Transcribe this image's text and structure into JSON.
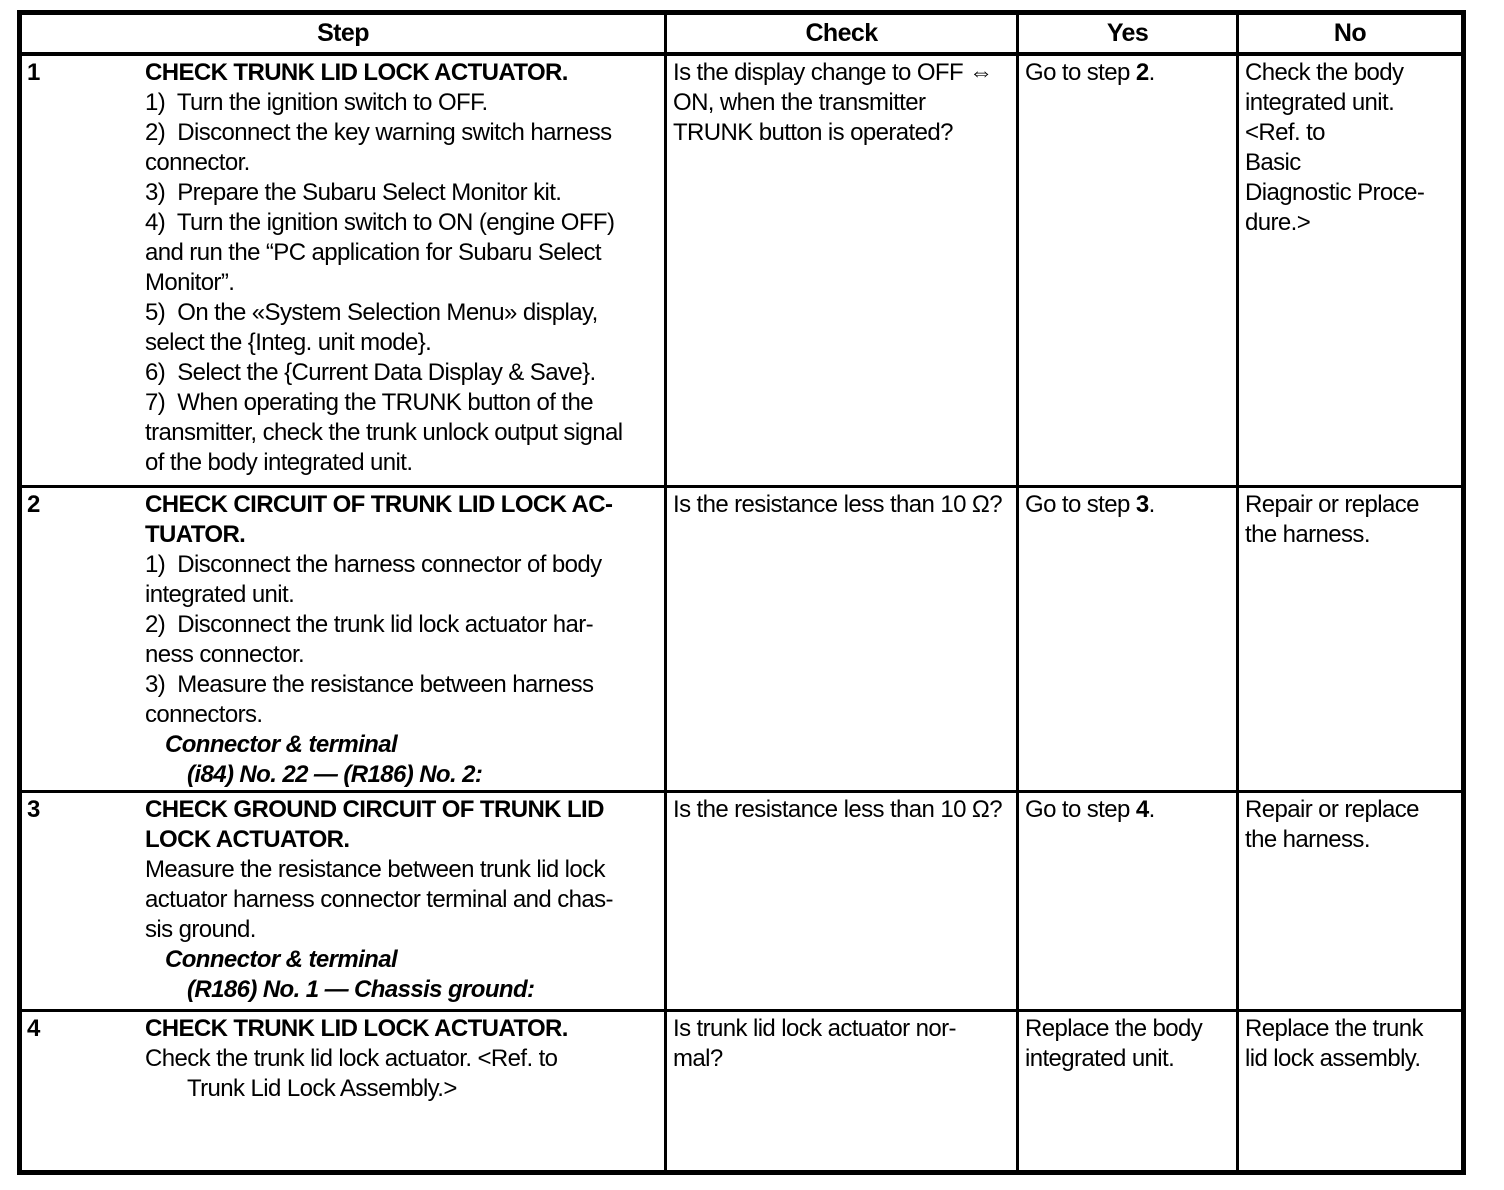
{
  "colors": {
    "background": "#ffffff",
    "border": "#000000",
    "text": "#000000"
  },
  "table": {
    "headers": [
      "Step",
      "Check",
      "Yes",
      "No"
    ],
    "rows": [
      {
        "step_no": "1",
        "step": [
          {
            "b": true,
            "t": "CHECK TRUNK LID LOCK ACTUATOR."
          },
          "1)  Turn the ignition switch to OFF.",
          "2)  Disconnect the key warning switch harness",
          "connector.",
          "3)  Prepare the Subaru Select Monitor kit.",
          "4)  Turn the ignition switch to ON (engine OFF)",
          "and run the “PC application for Subaru Select",
          "Monitor”.",
          "5)  On the «System Selection Menu» display,",
          "select the {Integ. unit mode}.",
          "6)  Select the {Current Data Display & Save}.",
          "7)  When operating the TRUNK button of the",
          "transmitter, check the trunk unlock output signal",
          "of the body integrated unit."
        ],
        "check": [
          "Is the display change to OFF ⇔",
          "ON, when the transmitter",
          "TRUNK button is operated?"
        ],
        "yes": [
          {
            "seg": [
              {
                "t": "Go to step "
              },
              {
                "t": "2",
                "b": true
              },
              {
                "t": "."
              }
            ]
          }
        ],
        "no": [
          "Check the body",
          "integrated unit.",
          "<Ref. to",
          "Basic",
          "Diagnostic Proce-",
          "dure.>"
        ]
      },
      {
        "step_no": "2",
        "step": [
          {
            "b": true,
            "t": "CHECK CIRCUIT OF TRUNK LID LOCK AC-"
          },
          {
            "b": true,
            "t": "TUATOR."
          },
          "1)  Disconnect the harness connector of body",
          "integrated unit.",
          "2)  Disconnect the trunk lid lock actuator har-",
          "ness connector.",
          "3)  Measure the resistance between harness",
          "connectors.",
          {
            "b": true,
            "i": true,
            "ind": 1,
            "t": "Connector & terminal"
          },
          {
            "b": true,
            "i": true,
            "ind": 2,
            "t": "(i84) No. 22 — (R186) No. 2:"
          }
        ],
        "check": [
          "Is the resistance less than 10 Ω?"
        ],
        "yes": [
          {
            "seg": [
              {
                "t": "Go to step "
              },
              {
                "t": "3",
                "b": true
              },
              {
                "t": "."
              }
            ]
          }
        ],
        "no": [
          "Repair or replace",
          "the harness."
        ]
      },
      {
        "step_no": "3",
        "step": [
          {
            "b": true,
            "t": "CHECK GROUND CIRCUIT OF TRUNK LID"
          },
          {
            "b": true,
            "t": "LOCK ACTUATOR."
          },
          "Measure the resistance between trunk lid lock",
          "actuator harness connector terminal and chas-",
          "sis ground.",
          {
            "b": true,
            "i": true,
            "ind": 1,
            "t": "Connector & terminal"
          },
          {
            "b": true,
            "i": true,
            "ind": 2,
            "t": "(R186) No. 1 — Chassis ground:"
          }
        ],
        "check": [
          "Is the resistance less than 10 Ω?"
        ],
        "yes": [
          {
            "seg": [
              {
                "t": "Go to step "
              },
              {
                "t": "4",
                "b": true
              },
              {
                "t": "."
              }
            ]
          }
        ],
        "no": [
          "Repair or replace",
          "the harness."
        ]
      },
      {
        "step_no": "4",
        "step": [
          {
            "b": true,
            "t": "CHECK TRUNK LID LOCK ACTUATOR."
          },
          "Check the trunk lid lock actuator. <Ref. to",
          {
            "ind": 2,
            "t": "Trunk Lid Lock Assembly.>"
          }
        ],
        "check": [
          "Is trunk lid lock actuator nor-",
          "mal?"
        ],
        "yes": [
          "Replace the body",
          "integrated unit."
        ],
        "no": [
          "Replace the trunk",
          "lid lock assembly."
        ]
      }
    ]
  }
}
